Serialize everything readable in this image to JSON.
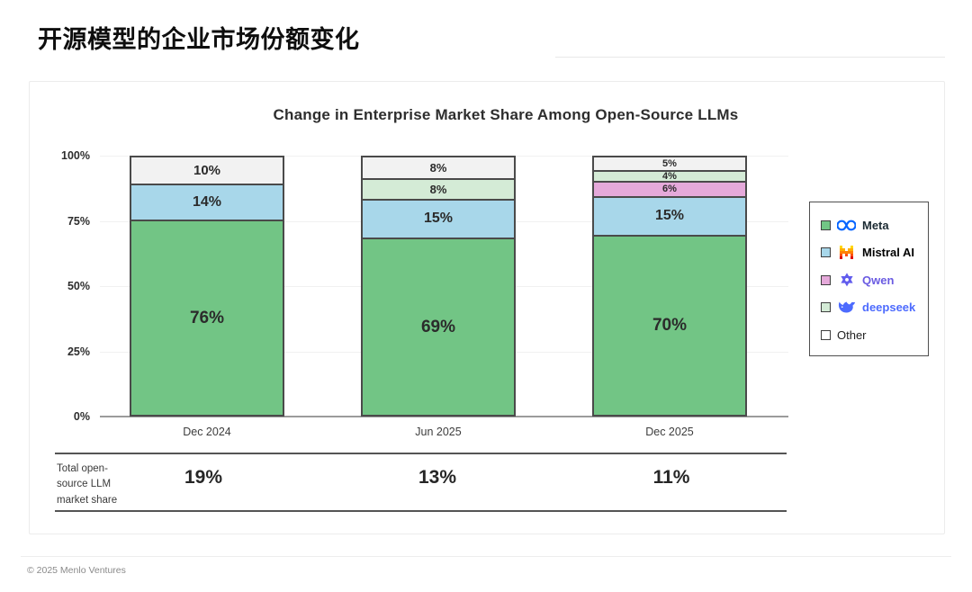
{
  "page": {
    "title": "开源模型的企业市场份额变化",
    "footer": "© 2025 Menlo Ventures"
  },
  "chart_data": {
    "type": "bar",
    "variant": "stacked-percent",
    "title": "Change in Enterprise Market Share Among Open-Source LLMs",
    "categories": [
      "Dec 2024",
      "Jun 2025",
      "Dec 2025"
    ],
    "series": [
      {
        "name": "Meta",
        "color": "#72C585",
        "values": [
          76,
          69,
          70
        ]
      },
      {
        "name": "Mistral AI",
        "color": "#A8D7EA",
        "values": [
          14,
          15,
          15
        ]
      },
      {
        "name": "Qwen",
        "color": "#E5A9DA",
        "values": [
          0,
          0,
          6
        ]
      },
      {
        "name": "deepseek",
        "color": "#D4EBD6",
        "values": [
          0,
          8,
          4
        ]
      },
      {
        "name": "Other",
        "color": "#F2F2F2",
        "values": [
          10,
          8,
          5
        ]
      }
    ],
    "value_suffix": "%",
    "ylim": [
      0,
      100
    ],
    "y_ticks": [
      {
        "label": "100%",
        "value": 100
      },
      {
        "label": "75%",
        "value": 75
      },
      {
        "label": "50%",
        "value": 50
      },
      {
        "label": "25%",
        "value": 25
      },
      {
        "label": "0%",
        "value": 0
      }
    ],
    "grid": true,
    "legend_position": "right"
  },
  "legend": {
    "items": [
      {
        "label": "Meta",
        "icon": "meta-logo",
        "swatch": "#72C585",
        "text_color": "#1c2b33",
        "weight": 600
      },
      {
        "label": "Mistral AI",
        "icon": "mistral-logo",
        "swatch": "#A8D7EA",
        "text_color": "#000000",
        "weight": 800
      },
      {
        "label": "Qwen",
        "icon": "qwen-logo",
        "swatch": "#E5A9DA",
        "text_color": "#6A5BE2",
        "weight": 700
      },
      {
        "label": "deepseek",
        "icon": "deepseek-logo",
        "swatch": "#D4EBD6",
        "text_color": "#4D6BFE",
        "weight": 600
      },
      {
        "label": "Other",
        "icon": null,
        "swatch": "#FFFFFF",
        "text_color": "#222222",
        "weight": 400
      }
    ]
  },
  "totals": {
    "label": "Total open-source LLM market share",
    "values": [
      "19%",
      "13%",
      "11%"
    ]
  }
}
